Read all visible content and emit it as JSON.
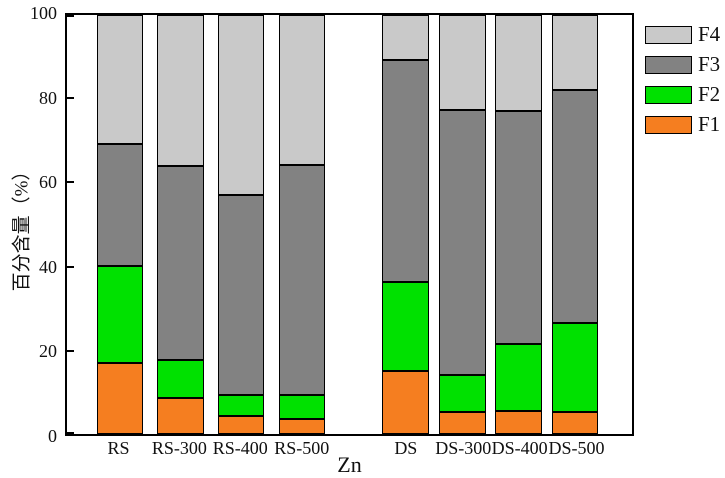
{
  "chart_data": {
    "type": "bar",
    "stacked": true,
    "title": "",
    "xlabel": "Zn",
    "ylabel": "百分含量（%）",
    "ylim": [
      0,
      100
    ],
    "yticks": [
      0,
      20,
      40,
      60,
      80,
      100
    ],
    "grid": false,
    "categories": [
      "RS",
      "RS-300",
      "RS-400",
      "RS-500",
      "DS",
      "DS-300",
      "DS-400",
      "DS-500"
    ],
    "series": [
      {
        "name": "F1",
        "color": "#f57e20",
        "values": [
          16.9,
          8.6,
          4.3,
          3.6,
          15.0,
          5.3,
          5.5,
          5.2
        ]
      },
      {
        "name": "F2",
        "color": "#00e100",
        "values": [
          23.1,
          9.0,
          5.0,
          5.7,
          21.3,
          8.9,
          16.1,
          21.2
        ]
      },
      {
        "name": "F3",
        "color": "#828282",
        "values": [
          29.3,
          46.4,
          47.7,
          54.9,
          53.0,
          63.2,
          55.6,
          55.6
        ]
      },
      {
        "name": "F4",
        "color": "#c9c9c9",
        "values": [
          30.7,
          36.0,
          43.0,
          35.8,
          10.7,
          22.6,
          22.8,
          18.0
        ]
      }
    ],
    "legend": {
      "position": "top-right-outside",
      "entries": [
        "F4",
        "F3",
        "F2",
        "F1"
      ]
    }
  }
}
